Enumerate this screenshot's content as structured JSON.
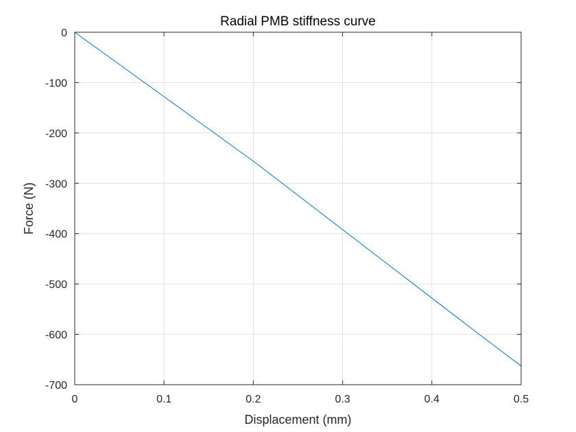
{
  "chart_data": {
    "type": "line",
    "title": "Radial PMB stiffness curve",
    "xlabel": "Displacement (mm)",
    "ylabel": "Force (N)",
    "xlim": [
      0,
      0.5
    ],
    "ylim": [
      -700,
      0
    ],
    "x_ticks": [
      "0",
      "0.1",
      "0.2",
      "0.3",
      "0.4",
      "0.5"
    ],
    "y_ticks": [
      "0",
      "-100",
      "-200",
      "-300",
      "-400",
      "-500",
      "-600",
      "-700"
    ],
    "grid": true,
    "legend": "none",
    "series": [
      {
        "color": "#0072BD",
        "x": [
          0,
          0.05,
          0.1,
          0.15,
          0.2,
          0.25,
          0.3,
          0.35,
          0.4,
          0.45,
          0.5
        ],
        "y": [
          0,
          -64,
          -128,
          -192,
          -256,
          -324,
          -392,
          -460,
          -528,
          -596,
          -663
        ]
      }
    ]
  },
  "colors": {
    "axis": "#262626",
    "grid": "#dfdfdf",
    "line": "#0072BD",
    "plot_background": "#ffffff"
  }
}
